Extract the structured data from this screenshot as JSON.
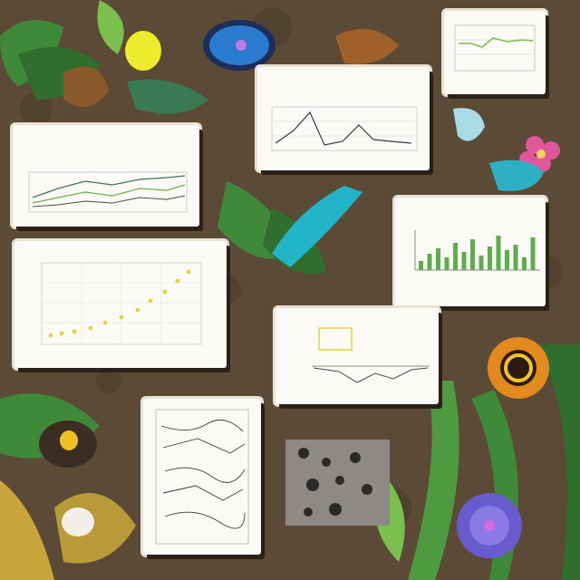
{
  "scene": {
    "palette": {
      "soil": "#5b4a35",
      "soil_dark": "#3e3024",
      "leaf": "#3f8a3a",
      "leaf_light": "#7bbf4f",
      "teal": "#22b5c9",
      "paper": "#fbfaf6",
      "ink": "#4a4a55",
      "bar_green": "#5cae4a",
      "point_yellow": "#e6d33a",
      "flower_pink": "#e0569a",
      "flower_purple": "#6a5ad0",
      "sun_orange": "#e38a1e"
    },
    "decor": [
      {
        "name": "yellow-orb",
        "icon": "circle"
      },
      {
        "name": "blue-blossom",
        "icon": "flower"
      },
      {
        "name": "pink-flower",
        "icon": "flower"
      },
      {
        "name": "purple-flower",
        "icon": "flower"
      },
      {
        "name": "orange-sunflower",
        "icon": "ring"
      },
      {
        "name": "teal-pod",
        "icon": "leaf"
      },
      {
        "name": "seed-in-soil",
        "icon": "ellipse"
      },
      {
        "name": "spotted-stone",
        "icon": "rect"
      }
    ]
  },
  "cards": [
    {
      "id": "card-top-right",
      "kind": "line-chart-small"
    },
    {
      "id": "card-top-center",
      "kind": "line-chart-peaks"
    },
    {
      "id": "card-left-upper",
      "kind": "multi-line-chart"
    },
    {
      "id": "card-right-bars",
      "kind": "bar-chart"
    },
    {
      "id": "card-left-scatter",
      "kind": "scatter-chart"
    },
    {
      "id": "card-center-small",
      "kind": "ticked-chart"
    },
    {
      "id": "card-bottom-sketch",
      "kind": "hand-sketch"
    }
  ]
}
